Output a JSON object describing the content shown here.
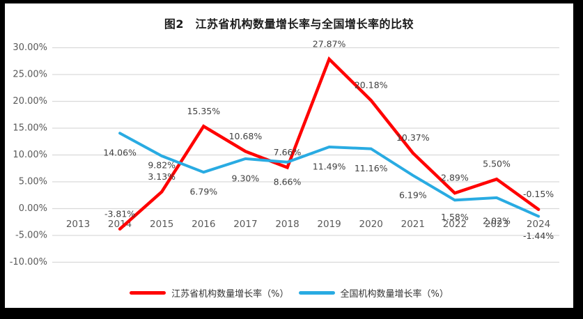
{
  "frame": {
    "border_color": "#000000",
    "chart_background": "#ffffff"
  },
  "chart_data": {
    "type": "line",
    "title": "图2　江苏省机构数量增长率与全国增长率的比较",
    "categories": [
      "2013",
      "2014",
      "2015",
      "2016",
      "2017",
      "2018",
      "2019",
      "2020",
      "2021",
      "2022",
      "2023",
      "2024"
    ],
    "series": [
      {
        "name": "江苏省机构数量增长率（%）",
        "color": "#ff0000",
        "label_position": "above",
        "values": [
          null,
          -3.81,
          3.13,
          15.35,
          10.68,
          7.66,
          27.87,
          20.18,
          10.37,
          2.89,
          5.5,
          -0.15
        ],
        "value_labels": [
          "",
          "-3.81%",
          "3.13%",
          "15.35%",
          "10.68%",
          "7.66%",
          "27.87%",
          "20.18%",
          "10.37%",
          "2.89%",
          "5.50%",
          "-0.15%"
        ]
      },
      {
        "name": "全国机构数量增长率（%）",
        "color": "#29abe2",
        "label_position": "below",
        "values": [
          null,
          14.06,
          9.82,
          6.79,
          9.3,
          8.66,
          11.49,
          11.16,
          6.19,
          1.58,
          2.02,
          -1.44
        ],
        "value_labels": [
          "",
          "14.06%",
          "9.82%",
          "6.79%",
          "9.30%",
          "8.66%",
          "11.49%",
          "11.16%",
          "6.19%",
          "1.58%",
          "2.02%",
          "-1.44%"
        ]
      }
    ],
    "y_axis": {
      "min": -10,
      "max": 30,
      "step": 5,
      "tick_labels": [
        "30.00%",
        "25.00%",
        "20.00%",
        "15.00%",
        "10.00%",
        "5.00%",
        "0.00%",
        "-5.00%",
        "-10.00%"
      ]
    },
    "x_axis": {
      "label": ""
    },
    "grid": true,
    "legend_position": "bottom",
    "colors": {
      "gridline": "#d9d9d9",
      "axis_text": "#595959",
      "data_label": "#404040",
      "title_text": "#1a1a1a"
    }
  }
}
